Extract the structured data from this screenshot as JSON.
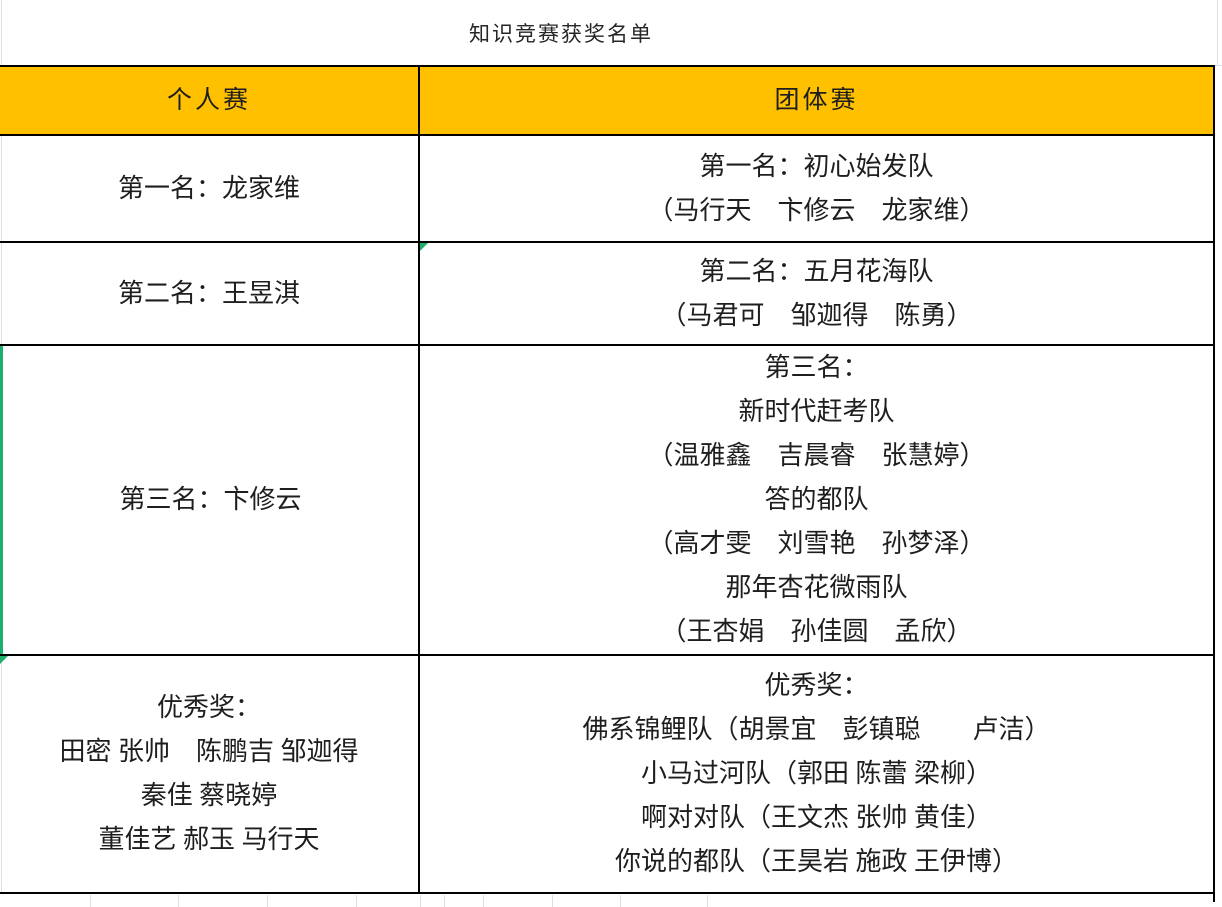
{
  "title": "知识竞赛获奖名单",
  "colors": {
    "header_bg": "#FFC000",
    "border": "#000000",
    "marker_green": "#1FAF6C",
    "gridline": "#D9DFE8",
    "text": "#1E1E1E"
  },
  "table": {
    "headers": [
      {
        "label": "个人赛"
      },
      {
        "label": "团体赛"
      }
    ],
    "rows": [
      {
        "individual": [
          "第一名：龙家维"
        ],
        "team": [
          "第一名：初心始发队",
          "（马行天　卞修云　龙家维）"
        ]
      },
      {
        "individual": [
          "第二名：王昱淇"
        ],
        "team": [
          "第二名：五月花海队",
          "（马君可　邹迦得　陈勇）"
        ]
      },
      {
        "individual": [
          "第三名：卞修云"
        ],
        "team": [
          "第三名：",
          "新时代赶考队",
          "（温雅鑫　吉晨睿　张慧婷）",
          "答的都队",
          "（高才雯　刘雪艳　孙梦泽）",
          "那年杏花微雨队",
          "（王杏娟　孙佳圆　孟欣）"
        ]
      },
      {
        "individual": [
          "优秀奖：",
          "田密 张帅　陈鹏吉 邹迦得",
          "秦佳 蔡晓婷",
          "董佳艺 郝玉 马行天"
        ],
        "team": [
          "优秀奖：",
          "佛系锦鲤队（胡景宜　彭镇聪　　卢洁）",
          "小马过河队（郭田 陈蕾 梁柳）",
          "啊对对队（王文杰 张帅 黄佳）",
          "你说的都队（王昊岩 施政 王伊博）"
        ]
      }
    ],
    "markers": {
      "triangle_cells": [
        [
          1,
          "team"
        ],
        [
          3,
          "individual"
        ]
      ],
      "green_border_cell": [
        2,
        "individual"
      ]
    }
  }
}
